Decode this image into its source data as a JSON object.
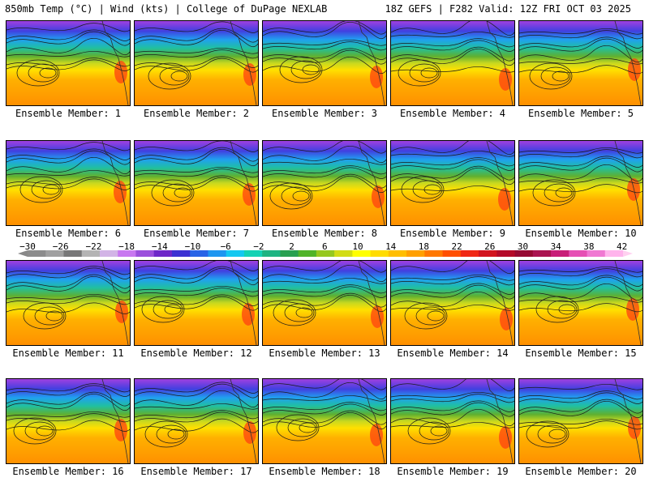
{
  "header": {
    "left": "850mb Temp (°C) | Wind (kts) | College of DuPage NEXLAB",
    "right": "18Z GEFS | F282 Valid: 12Z FRI OCT 03 2025"
  },
  "members": [
    "Ensemble Member: 1",
    "Ensemble Member: 2",
    "Ensemble Member: 3",
    "Ensemble Member: 4",
    "Ensemble Member: 5",
    "Ensemble Member: 6",
    "Ensemble Member: 7",
    "Ensemble Member: 8",
    "Ensemble Member: 9",
    "Ensemble Member: 10",
    "Ensemble Member: 11",
    "Ensemble Member: 12",
    "Ensemble Member: 13",
    "Ensemble Member: 14",
    "Ensemble Member: 15",
    "Ensemble Member: 16",
    "Ensemble Member: 17",
    "Ensemble Member: 18",
    "Ensemble Member: 19",
    "Ensemble Member: 20"
  ],
  "colorbar": {
    "ticks": [
      "−30",
      "−26",
      "−22",
      "−18",
      "−14",
      "−10",
      "−6",
      "−2",
      "2",
      "6",
      "10",
      "14",
      "18",
      "22",
      "26",
      "30",
      "34",
      "38",
      "42"
    ],
    "colors": [
      "#8c8c8c",
      "#a0a0a0",
      "#787878",
      "#b4b4b4",
      "#d2b4e6",
      "#c878f0",
      "#9b50dc",
      "#6e28c8",
      "#3c32d2",
      "#2864e6",
      "#1e96f0",
      "#14c8f0",
      "#14d2b4",
      "#1eb482",
      "#28a050",
      "#50b428",
      "#96c81e",
      "#d2dc14",
      "#ffff00",
      "#ffdc00",
      "#ffbe00",
      "#ffa000",
      "#ff7800",
      "#ff5000",
      "#f02814",
      "#d2141e",
      "#b40a28",
      "#960a32",
      "#aa1450",
      "#c81e78",
      "#e650b4",
      "#f078d2",
      "#ffb4ec"
    ]
  }
}
